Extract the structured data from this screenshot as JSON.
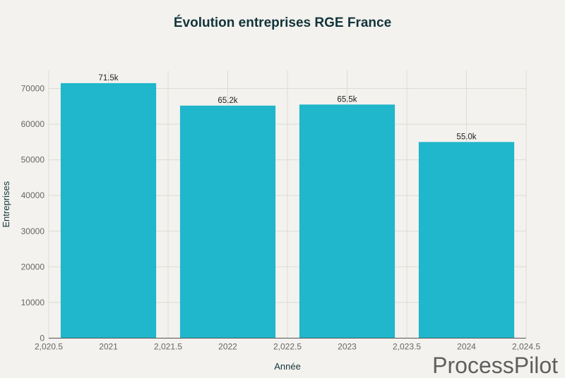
{
  "chart_data": {
    "type": "bar",
    "title": "Évolution entreprises RGE France",
    "xlabel": "Année",
    "ylabel": "Entreprises",
    "categories": [
      2021,
      2022,
      2023,
      2024
    ],
    "values": [
      71500,
      65200,
      65500,
      55000
    ],
    "data_labels": [
      "71.5k",
      "65.2k",
      "65.5k",
      "55.0k"
    ],
    "xlim": [
      2020.5,
      2024.5
    ],
    "ylim": [
      0,
      75000
    ],
    "x_ticks": [
      "2,020.5",
      "2021",
      "2,021.5",
      "2022",
      "2,022.5",
      "2023",
      "2,023.5",
      "2024",
      "2,024.5"
    ],
    "y_ticks": [
      0,
      10000,
      20000,
      30000,
      40000,
      50000,
      60000,
      70000
    ],
    "grid": true,
    "bar_color": "#20b6cb"
  },
  "watermark": "ProcessPilot"
}
